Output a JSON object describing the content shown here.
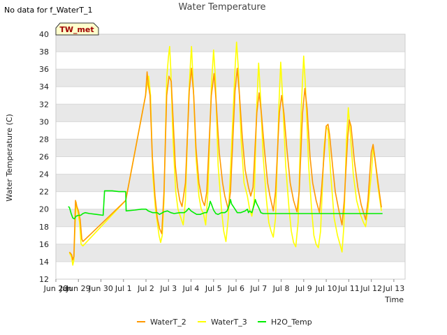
{
  "no_data_note": "No data for f_WaterT_1",
  "badge_label": "TW_met",
  "chart_data": {
    "type": "line",
    "title": "Water Temperature",
    "xlabel": "Time",
    "ylabel": "Water Temperature (C)",
    "ylim": [
      12,
      40
    ],
    "yticks": [
      12,
      14,
      16,
      18,
      20,
      22,
      24,
      26,
      28,
      30,
      32,
      34,
      36,
      38,
      40
    ],
    "xlim": [
      -0.5,
      15
    ],
    "xticks": [
      {
        "x": -0.5,
        "label": "Jun 28"
      },
      {
        "x": 0.5,
        "label": "Jun 29"
      },
      {
        "x": 1.5,
        "label": "Jun 30"
      },
      {
        "x": 2.5,
        "label": "Jul 1"
      },
      {
        "x": 3.5,
        "label": "Jul 2"
      },
      {
        "x": 4.5,
        "label": "Jul 3"
      },
      {
        "x": 5.5,
        "label": "Jul 4"
      },
      {
        "x": 6.5,
        "label": "Jul 5"
      },
      {
        "x": 7.5,
        "label": "Jul 6"
      },
      {
        "x": 8.5,
        "label": "Jul 7"
      },
      {
        "x": 9.5,
        "label": "Jul 8"
      },
      {
        "x": 10.5,
        "label": "Jul 9"
      },
      {
        "x": 11.5,
        "label": "Jul 10"
      },
      {
        "x": 12.5,
        "label": "Jul 11"
      },
      {
        "x": 13.5,
        "label": "Jul 12"
      },
      {
        "x": 14.5,
        "label": "Jul 13"
      }
    ],
    "extra_tick_labels": [
      {
        "x": -0.05,
        "label": "Jun"
      }
    ],
    "grid": true,
    "band_colors": [
      "#e8e8e8",
      "#ffffff"
    ],
    "legend_position": "bottom-center",
    "series": [
      {
        "name": "WaterT_2",
        "color": "#ff9900",
        "points": [
          [
            0.1,
            15.1
          ],
          [
            0.2,
            14.8
          ],
          [
            0.25,
            14.2
          ],
          [
            0.3,
            14.6
          ],
          [
            0.37,
            21.0
          ],
          [
            0.42,
            20.4
          ],
          [
            0.5,
            19.8
          ],
          [
            0.58,
            18.8
          ],
          [
            0.65,
            16.6
          ],
          [
            0.7,
            16.3
          ],
          [
            2.6,
            21.0
          ],
          [
            3.48,
            33.0
          ],
          [
            3.55,
            35.7
          ],
          [
            3.6,
            34.2
          ],
          [
            3.68,
            33.0
          ],
          [
            3.78,
            26.0
          ],
          [
            3.9,
            21.5
          ],
          [
            4.0,
            19.0
          ],
          [
            4.1,
            17.8
          ],
          [
            4.2,
            17.2
          ],
          [
            4.3,
            22.0
          ],
          [
            4.42,
            33.0
          ],
          [
            4.52,
            35.2
          ],
          [
            4.62,
            34.6
          ],
          [
            4.7,
            30.5
          ],
          [
            4.8,
            25.0
          ],
          [
            4.9,
            22.5
          ],
          [
            5.0,
            21.0
          ],
          [
            5.1,
            20.3
          ],
          [
            5.25,
            23.0
          ],
          [
            5.42,
            33.5
          ],
          [
            5.52,
            36.1
          ],
          [
            5.62,
            33.0
          ],
          [
            5.72,
            27.0
          ],
          [
            5.85,
            23.0
          ],
          [
            6.0,
            21.0
          ],
          [
            6.1,
            20.4
          ],
          [
            6.2,
            22.0
          ],
          [
            6.4,
            33.0
          ],
          [
            6.52,
            35.5
          ],
          [
            6.62,
            32.0
          ],
          [
            6.75,
            26.5
          ],
          [
            6.9,
            23.0
          ],
          [
            7.0,
            21.5
          ],
          [
            7.15,
            20.0
          ],
          [
            7.25,
            22.0
          ],
          [
            7.45,
            33.5
          ],
          [
            7.55,
            36.1
          ],
          [
            7.65,
            33.0
          ],
          [
            7.78,
            28.0
          ],
          [
            7.9,
            24.5
          ],
          [
            8.05,
            22.5
          ],
          [
            8.15,
            21.5
          ],
          [
            8.25,
            22.5
          ],
          [
            8.42,
            31.0
          ],
          [
            8.52,
            33.3
          ],
          [
            8.62,
            31.0
          ],
          [
            8.75,
            27.0
          ],
          [
            8.9,
            23.0
          ],
          [
            9.0,
            21.5
          ],
          [
            9.15,
            19.8
          ],
          [
            9.25,
            22.0
          ],
          [
            9.42,
            31.0
          ],
          [
            9.52,
            33.0
          ],
          [
            9.62,
            31.0
          ],
          [
            9.75,
            27.0
          ],
          [
            9.9,
            23.0
          ],
          [
            10.05,
            21.0
          ],
          [
            10.2,
            19.7
          ],
          [
            10.3,
            22.0
          ],
          [
            10.45,
            31.0
          ],
          [
            10.55,
            33.8
          ],
          [
            10.65,
            31.5
          ],
          [
            10.78,
            26.0
          ],
          [
            10.9,
            23.0
          ],
          [
            11.05,
            21.0
          ],
          [
            11.2,
            19.6
          ],
          [
            11.3,
            22.5
          ],
          [
            11.5,
            29.5
          ],
          [
            11.58,
            29.7
          ],
          [
            11.65,
            28.5
          ],
          [
            11.78,
            25.0
          ],
          [
            11.9,
            22.0
          ],
          [
            12.05,
            20.0
          ],
          [
            12.2,
            18.2
          ],
          [
            12.3,
            21.0
          ],
          [
            12.45,
            28.0
          ],
          [
            12.52,
            30.2
          ],
          [
            12.6,
            29.5
          ],
          [
            12.75,
            25.5
          ],
          [
            12.9,
            22.5
          ],
          [
            13.05,
            20.5
          ],
          [
            13.25,
            18.8
          ],
          [
            13.35,
            21.0
          ],
          [
            13.5,
            26.5
          ],
          [
            13.58,
            27.4
          ],
          [
            13.65,
            26.0
          ],
          [
            13.8,
            23.0
          ],
          [
            13.95,
            20.2
          ]
        ]
      },
      {
        "name": "WaterT_3",
        "color": "#ffff00",
        "points": [
          [
            0.1,
            15.0
          ],
          [
            0.2,
            14.5
          ],
          [
            0.25,
            13.6
          ],
          [
            0.3,
            14.2
          ],
          [
            0.35,
            18.0
          ],
          [
            0.4,
            20.8
          ],
          [
            0.45,
            20.0
          ],
          [
            0.55,
            18.5
          ],
          [
            0.62,
            16.0
          ],
          [
            0.7,
            15.8
          ],
          [
            2.6,
            21.0
          ],
          [
            3.48,
            33.0
          ],
          [
            3.55,
            34.2
          ],
          [
            3.62,
            35.2
          ],
          [
            3.7,
            33.0
          ],
          [
            3.8,
            24.0
          ],
          [
            3.92,
            20.0
          ],
          [
            4.0,
            18.5
          ],
          [
            4.08,
            17.0
          ],
          [
            4.15,
            16.2
          ],
          [
            4.22,
            17.0
          ],
          [
            4.3,
            21.0
          ],
          [
            4.42,
            35.0
          ],
          [
            4.5,
            37.5
          ],
          [
            4.55,
            38.6
          ],
          [
            4.6,
            36.0
          ],
          [
            4.7,
            28.0
          ],
          [
            4.82,
            22.0
          ],
          [
            4.92,
            20.0
          ],
          [
            5.05,
            19.0
          ],
          [
            5.15,
            18.2
          ],
          [
            5.25,
            21.0
          ],
          [
            5.4,
            33.0
          ],
          [
            5.48,
            37.0
          ],
          [
            5.52,
            38.6
          ],
          [
            5.6,
            34.0
          ],
          [
            5.72,
            26.0
          ],
          [
            5.85,
            21.5
          ],
          [
            5.95,
            20.0
          ],
          [
            6.05,
            19.5
          ],
          [
            6.15,
            18.2
          ],
          [
            6.25,
            22.0
          ],
          [
            6.4,
            34.0
          ],
          [
            6.5,
            38.2
          ],
          [
            6.58,
            35.0
          ],
          [
            6.7,
            25.0
          ],
          [
            6.85,
            20.0
          ],
          [
            6.95,
            17.5
          ],
          [
            7.05,
            16.3
          ],
          [
            7.15,
            19.0
          ],
          [
            7.35,
            30.0
          ],
          [
            7.45,
            36.0
          ],
          [
            7.52,
            39.1
          ],
          [
            7.6,
            36.0
          ],
          [
            7.72,
            28.0
          ],
          [
            7.85,
            23.0
          ],
          [
            8.0,
            21.5
          ],
          [
            8.1,
            20.0
          ],
          [
            8.2,
            19.2
          ],
          [
            8.3,
            21.0
          ],
          [
            8.42,
            32.0
          ],
          [
            8.5,
            36.7
          ],
          [
            8.58,
            33.0
          ],
          [
            8.7,
            26.0
          ],
          [
            8.85,
            21.0
          ],
          [
            8.95,
            18.5
          ],
          [
            9.05,
            17.5
          ],
          [
            9.15,
            16.8
          ],
          [
            9.25,
            19.0
          ],
          [
            9.4,
            32.0
          ],
          [
            9.48,
            36.8
          ],
          [
            9.56,
            33.0
          ],
          [
            9.7,
            25.0
          ],
          [
            9.85,
            20.0
          ],
          [
            9.95,
            17.5
          ],
          [
            10.05,
            16.2
          ],
          [
            10.15,
            15.7
          ],
          [
            10.25,
            18.5
          ],
          [
            10.4,
            32.0
          ],
          [
            10.5,
            37.5
          ],
          [
            10.58,
            34.0
          ],
          [
            10.72,
            25.0
          ],
          [
            10.85,
            20.0
          ],
          [
            10.95,
            17.0
          ],
          [
            11.05,
            16.0
          ],
          [
            11.15,
            15.6
          ],
          [
            11.25,
            17.5
          ],
          [
            11.4,
            27.0
          ],
          [
            11.5,
            29.5
          ],
          [
            11.58,
            29.0
          ],
          [
            11.7,
            24.0
          ],
          [
            11.85,
            19.0
          ],
          [
            12.0,
            17.0
          ],
          [
            12.15,
            15.6
          ],
          [
            12.2,
            15.1
          ],
          [
            12.28,
            18.0
          ],
          [
            12.4,
            28.0
          ],
          [
            12.48,
            31.6
          ],
          [
            12.56,
            29.0
          ],
          [
            12.7,
            24.0
          ],
          [
            12.85,
            21.0
          ],
          [
            13.0,
            19.5
          ],
          [
            13.15,
            18.5
          ],
          [
            13.25,
            18.0
          ],
          [
            13.35,
            20.0
          ],
          [
            13.5,
            24.0
          ],
          [
            13.58,
            26.9
          ],
          [
            13.65,
            26.0
          ],
          [
            13.8,
            22.5
          ],
          [
            13.95,
            19.8
          ]
        ]
      },
      {
        "name": "H2O_Temp",
        "color": "#00ee00",
        "points": [
          [
            0.05,
            20.3
          ],
          [
            0.1,
            20.2
          ],
          [
            0.18,
            19.5
          ],
          [
            0.25,
            19.0
          ],
          [
            0.32,
            18.9
          ],
          [
            0.4,
            19.2
          ],
          [
            0.5,
            19.3
          ],
          [
            0.6,
            19.3
          ],
          [
            0.7,
            19.5
          ],
          [
            0.8,
            19.6
          ],
          [
            1.0,
            19.5
          ],
          [
            1.3,
            19.4
          ],
          [
            1.6,
            19.3
          ],
          [
            1.66,
            22.1
          ],
          [
            2.0,
            22.1
          ],
          [
            2.3,
            22.0
          ],
          [
            2.6,
            22.0
          ],
          [
            2.62,
            19.8
          ],
          [
            3.0,
            19.9
          ],
          [
            3.3,
            20.0
          ],
          [
            3.5,
            20.0
          ],
          [
            3.6,
            19.8
          ],
          [
            3.8,
            19.6
          ],
          [
            4.0,
            19.6
          ],
          [
            4.1,
            19.4
          ],
          [
            4.3,
            19.7
          ],
          [
            4.45,
            19.8
          ],
          [
            4.6,
            19.6
          ],
          [
            4.75,
            19.5
          ],
          [
            5.0,
            19.6
          ],
          [
            5.2,
            19.6
          ],
          [
            5.3,
            19.8
          ],
          [
            5.4,
            20.1
          ],
          [
            5.5,
            19.8
          ],
          [
            5.62,
            19.6
          ],
          [
            5.75,
            19.4
          ],
          [
            5.9,
            19.4
          ],
          [
            6.1,
            19.6
          ],
          [
            6.2,
            19.6
          ],
          [
            6.3,
            20.3
          ],
          [
            6.35,
            20.9
          ],
          [
            6.4,
            20.6
          ],
          [
            6.5,
            19.9
          ],
          [
            6.6,
            19.5
          ],
          [
            6.7,
            19.4
          ],
          [
            6.85,
            19.6
          ],
          [
            7.0,
            19.6
          ],
          [
            7.1,
            19.8
          ],
          [
            7.2,
            20.5
          ],
          [
            7.25,
            21.1
          ],
          [
            7.3,
            20.6
          ],
          [
            7.45,
            20.0
          ],
          [
            7.55,
            19.6
          ],
          [
            7.7,
            19.6
          ],
          [
            7.8,
            19.7
          ],
          [
            7.9,
            19.8
          ],
          [
            8.0,
            20.0
          ],
          [
            8.05,
            19.6
          ],
          [
            8.1,
            19.8
          ],
          [
            8.2,
            19.6
          ],
          [
            8.3,
            20.5
          ],
          [
            8.35,
            21.1
          ],
          [
            8.4,
            20.7
          ],
          [
            8.5,
            20.2
          ],
          [
            8.6,
            19.6
          ],
          [
            8.7,
            19.5
          ],
          [
            9.0,
            19.5
          ],
          [
            10.0,
            19.5
          ],
          [
            11.0,
            19.5
          ],
          [
            12.0,
            19.5
          ],
          [
            13.0,
            19.5
          ],
          [
            14.0,
            19.5
          ]
        ]
      }
    ]
  }
}
